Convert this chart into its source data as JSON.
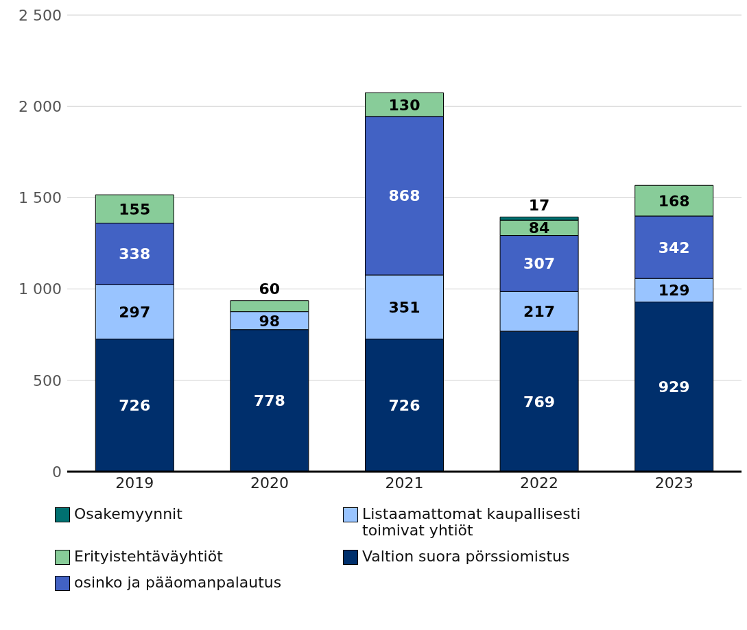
{
  "chart_data": {
    "type": "bar",
    "stacked": true,
    "categories": [
      "2019",
      "2020",
      "2021",
      "2022",
      "2023"
    ],
    "series": [
      {
        "name": "Valtion suora pörssiomistus",
        "color": "#002f6c",
        "values": [
          726,
          778,
          726,
          769,
          929
        ]
      },
      {
        "name": "Listaamattomat kaupallisesti toimivat yhtiöt",
        "color": "#99c4ff",
        "values": [
          297,
          98,
          351,
          217,
          129
        ]
      },
      {
        "name": "osinko ja pääomanpalautus",
        "color": "#4262c4",
        "values": [
          338,
          null,
          868,
          307,
          342
        ]
      },
      {
        "name": "Erityistehtäväyhtiöt",
        "color": "#88cc99",
        "values": [
          155,
          60,
          130,
          84,
          168
        ]
      },
      {
        "name": "Osakemyynnit",
        "color": "#007070",
        "values": [
          null,
          null,
          null,
          17,
          null
        ]
      }
    ],
    "ylim": [
      0,
      2500
    ],
    "yticks": [
      0,
      {
        "value": 500,
        "label": "500"
      },
      {
        "value": 1000,
        "label": "1 000"
      },
      {
        "value": 1500,
        "label": "1 500"
      },
      {
        "value": 2000,
        "label": "2 000"
      },
      {
        "value": 2500,
        "label": "2 500"
      }
    ],
    "grid": "y",
    "legend": "bottom",
    "data_labels": true
  }
}
